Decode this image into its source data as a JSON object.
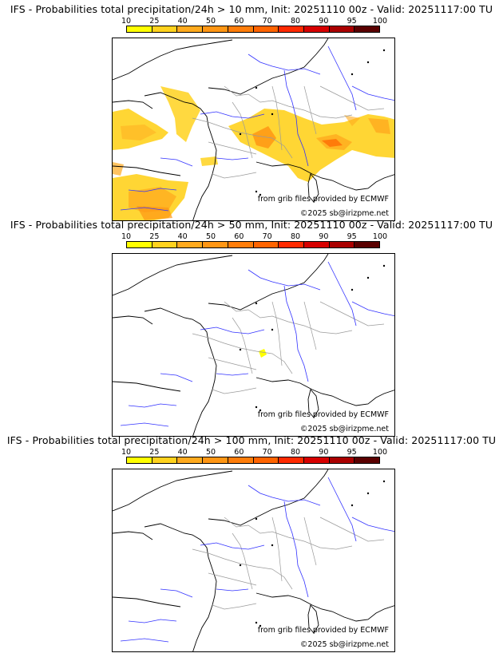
{
  "scale": {
    "labels": [
      "10",
      "25",
      "40",
      "50",
      "60",
      "70",
      "80",
      "90",
      "95",
      "100"
    ],
    "colors": [
      "#ffff00",
      "#ffd21e",
      "#ffaa1e",
      "#ff9614",
      "#ff7d0a",
      "#ff6400",
      "#ff2a00",
      "#d70000",
      "#aa0000",
      "#5a0000"
    ]
  },
  "colors": {
    "coast": "#000000",
    "border": "#9a9a9a",
    "river": "#3232ff"
  },
  "panels": [
    {
      "title": "IFS - Probabilities total precipitation/24h > 10 mm, Init: 20251110 00z - Valid: 20251117:00 TU",
      "credit_source": "from grib files provided by ECMWF",
      "credit_copyright": "©2025 sb@irizpme.net"
    },
    {
      "title": "IFS - Probabilities total precipitation/24h > 50 mm, Init: 20251110 00z - Valid: 20251117:00 TU",
      "credit_source": "from grib files provided by ECMWF",
      "credit_copyright": "©2025 sb@irizpme.net"
    },
    {
      "title": "IFS - Probabilities total precipitation/24h > 100 mm, Init: 20251110 00z - Valid: 20251117:00 TU",
      "credit_source": "from grib files provided by ECMWF",
      "credit_copyright": "©2025 sb@irizpme.net"
    }
  ]
}
